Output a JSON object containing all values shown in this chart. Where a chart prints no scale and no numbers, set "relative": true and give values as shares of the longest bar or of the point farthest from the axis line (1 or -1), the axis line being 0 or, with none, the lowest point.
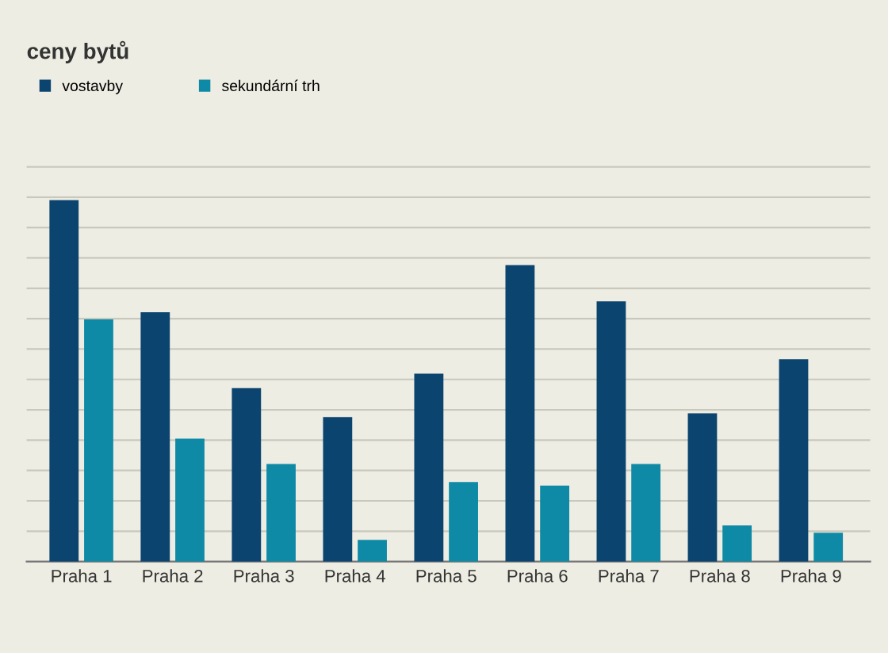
{
  "chart_data": {
    "type": "bar",
    "title": "ceny bytů",
    "relative": true,
    "grid": "y",
    "legend": "top left",
    "categories": [
      "Praha 1",
      "Praha 2",
      "Praha 3",
      "Praha 4",
      "Praha 5",
      "Praha 6",
      "Praha 7",
      "Praha 8",
      "Praha 9"
    ],
    "series": [
      {
        "name": "vostavby",
        "color": "#0c4470",
        "values": [
          1,
          0.69,
          0.48,
          0.4,
          0.52,
          0.82,
          0.72,
          0.41,
          0.56
        ]
      },
      {
        "name": "sekundární trh",
        "color": "#0e8aa6",
        "values": [
          0.67,
          0.34,
          0.27,
          0.06,
          0.22,
          0.21,
          0.27,
          0.1,
          0.08
        ]
      }
    ]
  }
}
